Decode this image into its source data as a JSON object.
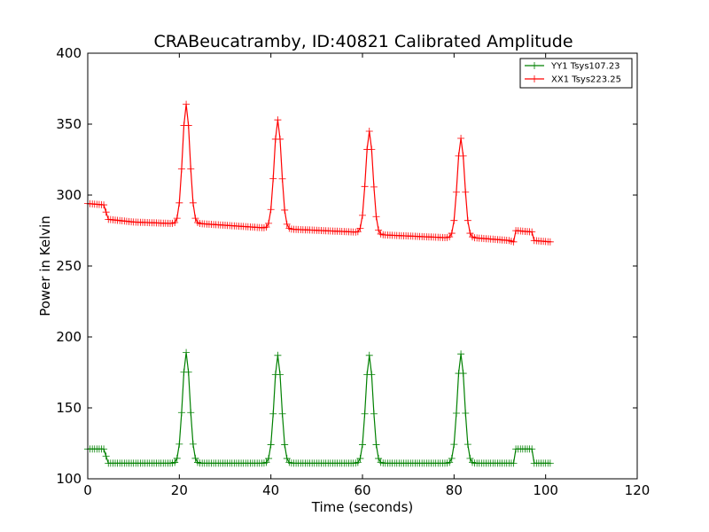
{
  "chart_data": {
    "type": "line",
    "title": "CRABeucatramby, ID:40821 Calibrated Amplitude",
    "xlabel": "Time (seconds)",
    "ylabel": "Power in Kelvin",
    "xlim": [
      0,
      120
    ],
    "ylim": [
      100,
      400
    ],
    "xticks": [
      0,
      20,
      40,
      60,
      80,
      100,
      120
    ],
    "yticks": [
      100,
      150,
      200,
      250,
      300,
      350,
      400
    ],
    "xtick_labels": [
      "0",
      "20",
      "40",
      "60",
      "80",
      "100",
      "120"
    ],
    "ytick_labels": [
      "100",
      "150",
      "200",
      "250",
      "300",
      "350",
      "400"
    ],
    "grid": false,
    "legend_position": "top-right",
    "marker": "+",
    "sample_interval": 0.5,
    "series": [
      {
        "name": "YY1 Tsys107.23",
        "color": "#008000",
        "shape_points": [
          [
            0,
            121
          ],
          [
            3.8,
            121
          ],
          [
            4.2,
            111
          ],
          [
            93,
            111
          ],
          [
            93.3,
            121
          ],
          [
            97,
            121
          ],
          [
            97.3,
            111
          ],
          [
            101,
            111
          ]
        ],
        "peaks": [
          {
            "center": 21.5,
            "height": 189,
            "width": 0.8
          },
          {
            "center": 41.5,
            "height": 187,
            "width": 0.8
          },
          {
            "center": 61.5,
            "height": 187,
            "width": 0.8
          },
          {
            "center": 81.5,
            "height": 188,
            "width": 0.8
          }
        ]
      },
      {
        "name": "XX1 Tsys223.25",
        "color": "#ff0000",
        "shape_points": [
          [
            0,
            294
          ],
          [
            3.8,
            293
          ],
          [
            4.2,
            283
          ],
          [
            10,
            281
          ],
          [
            18,
            280
          ],
          [
            24,
            280
          ],
          [
            38,
            277
          ],
          [
            44,
            276
          ],
          [
            58,
            274
          ],
          [
            64,
            272
          ],
          [
            78,
            270
          ],
          [
            84,
            270
          ],
          [
            92,
            268
          ],
          [
            93,
            267
          ],
          [
            93.3,
            275
          ],
          [
            97,
            274
          ],
          [
            97.3,
            268
          ],
          [
            101,
            267
          ]
        ],
        "peaks": [
          {
            "center": 21.5,
            "height": 364,
            "width": 0.8
          },
          {
            "center": 41.5,
            "height": 353,
            "width": 0.8
          },
          {
            "center": 61.5,
            "height": 345,
            "width": 0.8
          },
          {
            "center": 81.5,
            "height": 340,
            "width": 0.8
          }
        ]
      }
    ]
  }
}
